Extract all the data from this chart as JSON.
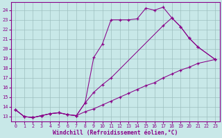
{
  "background_color": "#c8e8e8",
  "line_color": "#880088",
  "grid_color": "#9dbfbf",
  "xlabel": "Windchill (Refroidissement éolien,°C)",
  "xlim": [
    -0.5,
    23.5
  ],
  "ylim": [
    12.5,
    24.8
  ],
  "xticks": [
    0,
    1,
    2,
    3,
    4,
    5,
    6,
    7,
    8,
    9,
    10,
    11,
    12,
    13,
    14,
    15,
    16,
    17,
    18,
    19,
    20,
    21,
    22,
    23
  ],
  "yticks": [
    13,
    14,
    15,
    16,
    17,
    18,
    19,
    20,
    21,
    22,
    23,
    24
  ],
  "line1_x": [
    0,
    1,
    2,
    3,
    4,
    5,
    6,
    7,
    8,
    9,
    10,
    11,
    12,
    13,
    14,
    15,
    16,
    17,
    18,
    19,
    20,
    21,
    23
  ],
  "line1_y": [
    13.7,
    13.0,
    12.9,
    13.1,
    13.3,
    13.4,
    13.2,
    13.1,
    14.4,
    19.1,
    20.5,
    23.0,
    23.0,
    23.0,
    23.1,
    24.2,
    24.0,
    24.3,
    23.2,
    22.3,
    21.1,
    20.2,
    18.9
  ],
  "line2_x": [
    0,
    1,
    2,
    3,
    4,
    5,
    6,
    7,
    8,
    9,
    10,
    11,
    12,
    13,
    14,
    15,
    16,
    17,
    18,
    19,
    20,
    21,
    23
  ],
  "line2_y": [
    13.7,
    13.0,
    12.9,
    13.1,
    13.3,
    13.4,
    13.2,
    13.1,
    13.5,
    13.8,
    14.2,
    14.6,
    15.0,
    15.4,
    15.8,
    16.2,
    16.5,
    17.0,
    17.4,
    17.8,
    18.1,
    18.5,
    18.9
  ],
  "line3_x": [
    0,
    1,
    2,
    3,
    4,
    5,
    6,
    7,
    8,
    9,
    10,
    11,
    17,
    18,
    19,
    20,
    21,
    23
  ],
  "line3_y": [
    13.7,
    13.0,
    12.9,
    13.1,
    13.3,
    13.4,
    13.2,
    13.1,
    14.4,
    15.5,
    16.3,
    17.0,
    22.4,
    23.2,
    22.3,
    21.1,
    20.2,
    18.9
  ]
}
